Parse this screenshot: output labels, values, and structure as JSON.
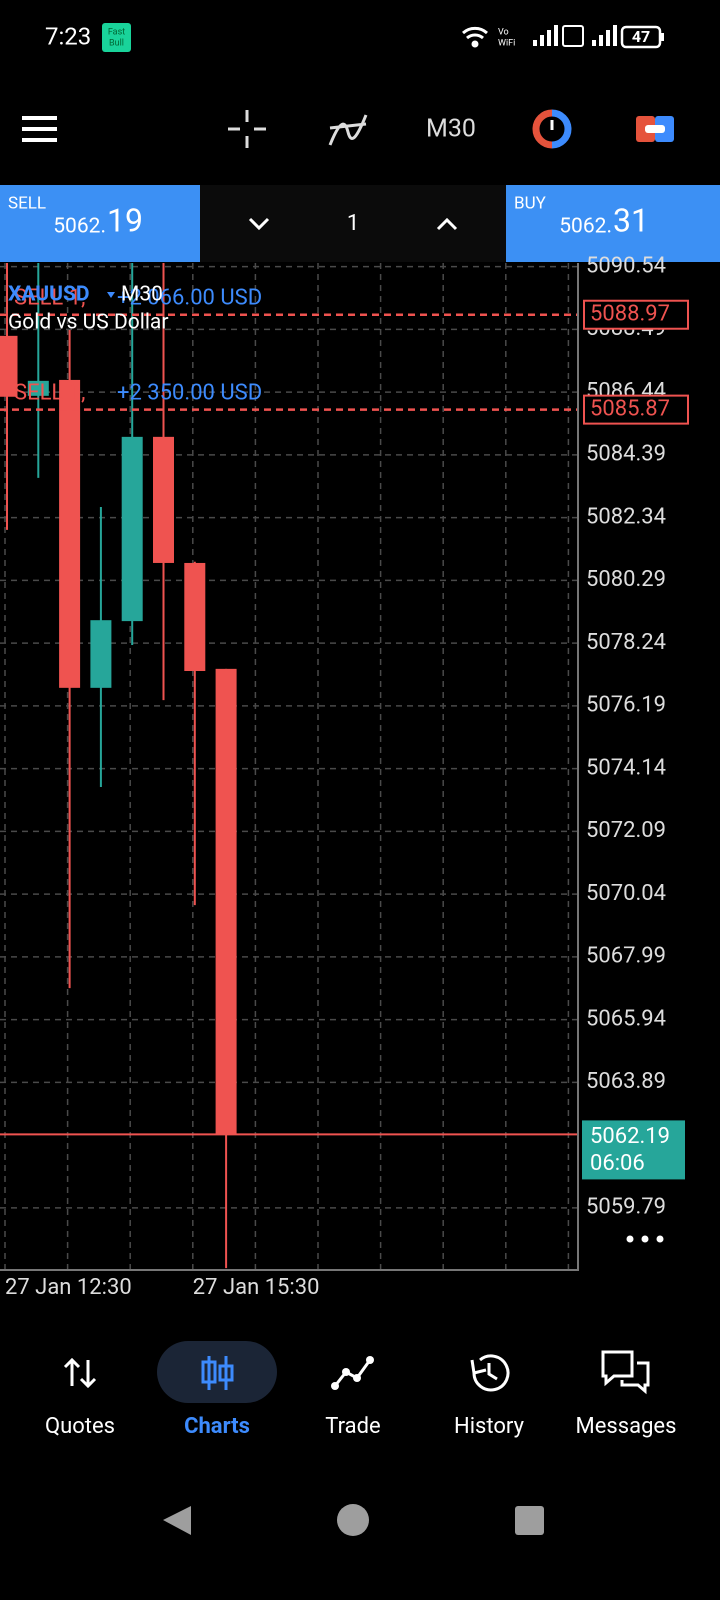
{
  "status_bar": {
    "time": "7:23",
    "app_badge": [
      "Fast",
      "Bull"
    ],
    "wifi_badge": [
      "Vo",
      "WiFi"
    ],
    "battery": "47"
  },
  "toolbar": {
    "timeframe": "M30"
  },
  "trade_panel": {
    "sell": {
      "label": "SELL",
      "price_main": "5062.",
      "price_big": "19"
    },
    "volume": "1",
    "buy": {
      "label": "BUY",
      "price_main": "5062.",
      "price_big": "31"
    }
  },
  "chart_data": {
    "type": "candlestick",
    "symbol": "XAUUSD",
    "timeframe": "M30",
    "description": "Gold vs US Dollar",
    "x": [
      "27 Jan 12:30",
      null,
      null,
      null,
      null,
      null,
      "27 Jan 15:30",
      null
    ],
    "open": [
      5088.28,
      5086.32,
      5086.84,
      5076.78,
      5078.96,
      5084.98,
      5080.86,
      5077.4
    ],
    "high": [
      5091.0,
      5091.5,
      5088.47,
      5082.69,
      5091.0,
      5090.8,
      5080.9,
      5077.4
    ],
    "low": [
      5081.94,
      5083.64,
      5066.97,
      5073.54,
      5078.18,
      5076.38,
      5069.68,
      5057.82
    ],
    "close": [
      5086.29,
      5086.81,
      5076.78,
      5078.99,
      5084.98,
      5080.86,
      5077.33,
      5062.19
    ],
    "up_color": "#26a69a",
    "down_color": "#ef5350",
    "ylim": [
      5057.76,
      5090.66
    ],
    "yticks": [
      5090.54,
      5088.49,
      5086.44,
      5084.39,
      5082.34,
      5080.29,
      5078.24,
      5076.19,
      5074.14,
      5072.09,
      5070.04,
      5067.99,
      5065.94,
      5063.89,
      5059.79
    ],
    "grid": true,
    "price_lines": [
      {
        "value": 5088.97,
        "label_left": "SELL 1,",
        "label_right": "+2 066.00 USD"
      },
      {
        "value": 5085.87,
        "label_left": "SELL 1,",
        "label_right": "+2 350.00 USD"
      }
    ],
    "current_price": {
      "value": 5062.19,
      "timer": "06:06"
    }
  },
  "nav": {
    "items": [
      "Quotes",
      "Charts",
      "Trade",
      "History",
      "Messages"
    ],
    "active": 1
  }
}
